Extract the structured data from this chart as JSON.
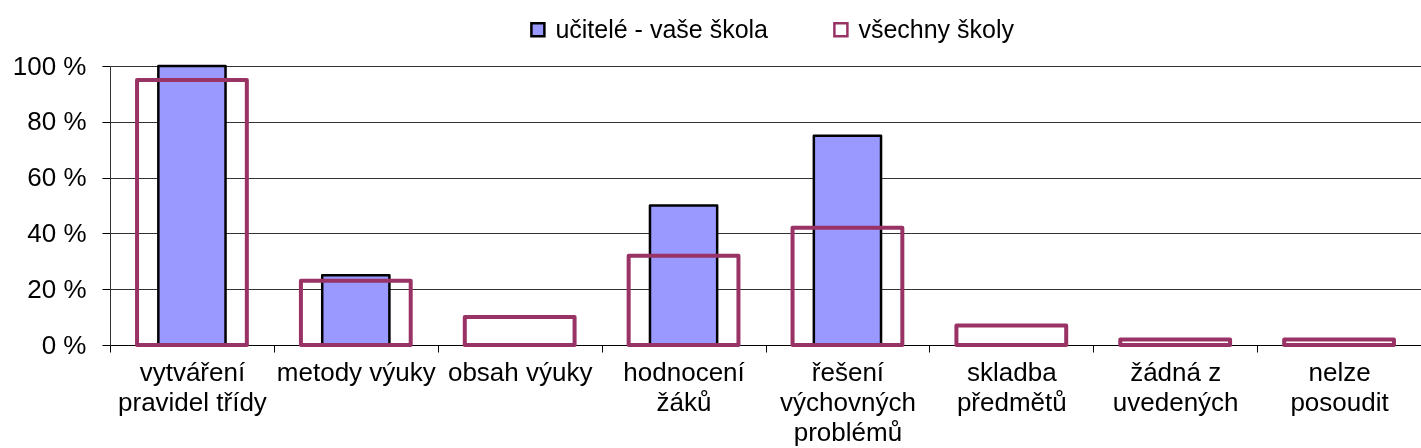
{
  "chart_data": {
    "type": "bar",
    "categories": [
      "vytváření\npravidel třídy",
      "metody výuky",
      "obsah výuky",
      "hodnocení\nžáků",
      "řešení\nvýchovných\nproblémů",
      "skladba\npředmětů",
      "žádná z\nuvedených",
      "nelze\nposoudit"
    ],
    "series": [
      {
        "name": "učitelé - vaše škola",
        "color": "#9999ff",
        "values": [
          100,
          25,
          null,
          50,
          75,
          null,
          null,
          null
        ]
      },
      {
        "name": "všechny školy",
        "color": "#993366",
        "values": [
          95,
          23,
          10,
          32,
          42,
          7,
          2,
          2
        ]
      }
    ],
    "ylim": [
      0,
      100
    ],
    "yticks": [
      {
        "value": 0,
        "label": "0 %"
      },
      {
        "value": 20,
        "label": "20 %"
      },
      {
        "value": 40,
        "label": "40 %"
      },
      {
        "value": 60,
        "label": "60 %"
      },
      {
        "value": 80,
        "label": "80 %"
      },
      {
        "value": 100,
        "label": "100 %"
      }
    ],
    "grid": "y",
    "legend": "top"
  }
}
